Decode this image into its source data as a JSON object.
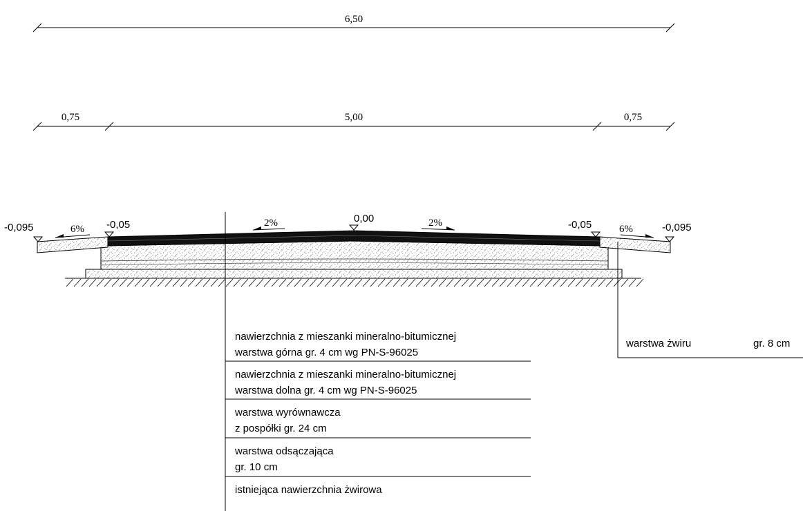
{
  "dimensions": {
    "overall": "6,50",
    "left": "0,75",
    "middle": "5,00",
    "right": "0,75"
  },
  "elevations": {
    "left_edge": "-0,095",
    "left_inner": "-0,05",
    "center": "0,00",
    "right_inner": "-0,05",
    "right_edge": "-0,095"
  },
  "slopes": {
    "left_shoulder": "6%",
    "left_lane": "2%",
    "right_lane": "2%",
    "right_shoulder": "6%"
  },
  "layers": [
    {
      "line1": "nawierzchnia z mieszanki mineralno-bitumicznej",
      "line2": "warstwa górna gr. 4 cm wg PN-S-96025"
    },
    {
      "line1": "nawierzchnia z mieszanki mineralno-bitumicznej",
      "line2": "warstwa dolna gr. 4 cm wg PN-S-96025"
    },
    {
      "line1": "warstwa wyrównawcza",
      "line2": "z pospółki gr. 24 cm"
    },
    {
      "line1": "warstwa odsączająca",
      "line2": "gr. 10 cm"
    },
    {
      "line1": "istniejąca nawierzchnia żwirowa",
      "line2": ""
    }
  ],
  "shoulder_note": {
    "label": "warstwa żwiru",
    "thickness": "gr. 8 cm"
  }
}
